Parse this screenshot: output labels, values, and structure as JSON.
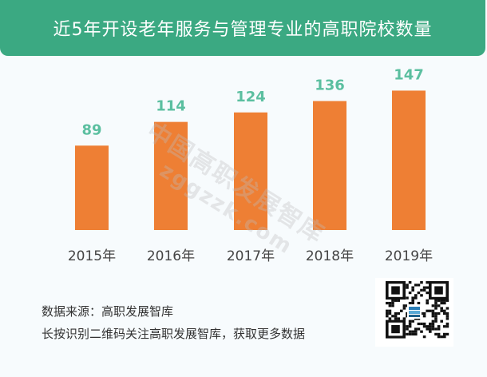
{
  "title": "近5年开设老年服务与管理专业的高职院校数量",
  "watermark": {
    "line1": "中国高职发展智库",
    "line2": "zggzzk.com"
  },
  "chart_data": {
    "type": "bar",
    "categories": [
      "2015年",
      "2016年",
      "2017年",
      "2018年",
      "2019年"
    ],
    "values": [
      89,
      114,
      124,
      136,
      147
    ],
    "title": "近5年开设老年服务与管理专业的高职院校数量",
    "xlabel": "",
    "ylabel": "",
    "ylim": [
      0,
      160
    ],
    "grid": false,
    "bar_color": "#ee7f34",
    "label_color": "#5bbfa0"
  },
  "footer": {
    "source": "数据来源：高职发展智库",
    "note": "长按识别二维码关注高职发展智库，获取更多数据"
  },
  "colors": {
    "header": "#3ba982",
    "background": "#f7fbfd"
  },
  "qr_icon": "qr-code-icon"
}
